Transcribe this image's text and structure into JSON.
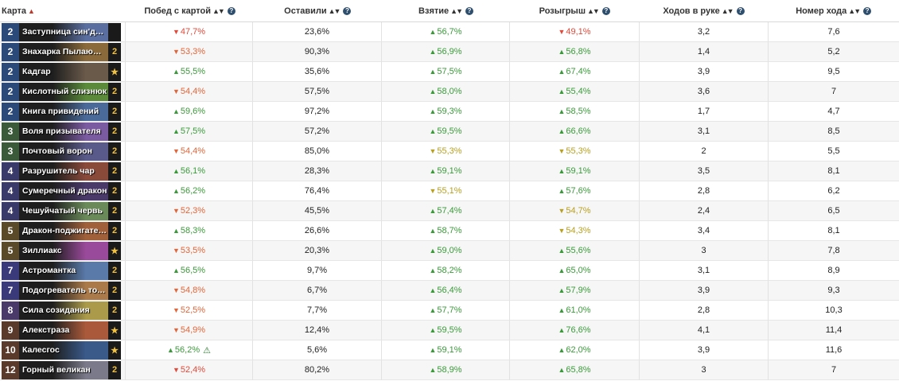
{
  "header": {
    "card": "Карта",
    "winrate": "Побед с картой",
    "kept": "Оставили",
    "drawn": "Взятие",
    "played": "Розыгрыш",
    "turns_held": "Ходов в руке",
    "turn_played": "Номер хода"
  },
  "colors": {
    "up": "#3a9a3a",
    "down": "#e0663a",
    "neutral": "#b8a020"
  },
  "rows": [
    {
      "cost": "2",
      "name": "Заступница син'дорай",
      "count": "",
      "legendary": false,
      "win": "47,7%",
      "win_dir": "down-strong",
      "kept": "23,6%",
      "drawn": "56,7%",
      "drawn_dir": "up",
      "played": "49,1%",
      "played_dir": "down-strong",
      "held": "3,2",
      "turn": "7,6",
      "art": "#5a6fa0"
    },
    {
      "cost": "2",
      "name": "Знахарка Пылающег…",
      "count": "2",
      "legendary": false,
      "win": "53,3%",
      "win_dir": "down",
      "kept": "90,3%",
      "drawn": "56,9%",
      "drawn_dir": "up",
      "played": "56,8%",
      "played_dir": "up",
      "held": "1,4",
      "turn": "5,2",
      "art": "#8a6a3a"
    },
    {
      "cost": "2",
      "name": "Кадгар",
      "count": "★",
      "legendary": true,
      "win": "55,5%",
      "win_dir": "up",
      "kept": "35,6%",
      "drawn": "57,5%",
      "drawn_dir": "up",
      "played": "67,4%",
      "played_dir": "up",
      "held": "3,9",
      "turn": "9,5",
      "art": "#6a5a4a"
    },
    {
      "cost": "2",
      "name": "Кислотный слизнюк",
      "count": "2",
      "legendary": false,
      "win": "54,4%",
      "win_dir": "down",
      "kept": "57,5%",
      "drawn": "58,0%",
      "drawn_dir": "up",
      "played": "55,4%",
      "played_dir": "up",
      "held": "3,6",
      "turn": "7",
      "art": "#5a8a3a"
    },
    {
      "cost": "2",
      "name": "Книга привидений",
      "count": "2",
      "legendary": false,
      "win": "59,6%",
      "win_dir": "up",
      "kept": "97,2%",
      "drawn": "59,3%",
      "drawn_dir": "up",
      "played": "58,5%",
      "played_dir": "up",
      "held": "1,7",
      "turn": "4,7",
      "art": "#4a6a9a"
    },
    {
      "cost": "3",
      "name": "Воля призывателя",
      "count": "2",
      "legendary": false,
      "win": "57,5%",
      "win_dir": "up",
      "kept": "57,2%",
      "drawn": "59,5%",
      "drawn_dir": "up",
      "played": "66,6%",
      "played_dir": "up",
      "held": "3,1",
      "turn": "8,5",
      "art": "#7a5aa0"
    },
    {
      "cost": "3",
      "name": "Почтовый ворон",
      "count": "2",
      "legendary": false,
      "win": "54,4%",
      "win_dir": "down",
      "kept": "85,0%",
      "drawn": "55,3%",
      "drawn_dir": "neutral",
      "played": "55,3%",
      "played_dir": "neutral",
      "held": "2",
      "turn": "5,5",
      "art": "#5a5a8a"
    },
    {
      "cost": "4",
      "name": "Разрушитель чар",
      "count": "2",
      "legendary": false,
      "win": "56,1%",
      "win_dir": "up",
      "kept": "28,3%",
      "drawn": "59,1%",
      "drawn_dir": "up",
      "played": "59,1%",
      "played_dir": "up",
      "held": "3,5",
      "turn": "8,1",
      "art": "#8a4a3a"
    },
    {
      "cost": "4",
      "name": "Сумеречный дракон",
      "count": "2",
      "legendary": false,
      "win": "56,2%",
      "win_dir": "up",
      "kept": "76,4%",
      "drawn": "55,1%",
      "drawn_dir": "neutral",
      "played": "57,6%",
      "played_dir": "up",
      "held": "2,8",
      "turn": "6,2",
      "art": "#4a3a6a"
    },
    {
      "cost": "4",
      "name": "Чешуйчатый червь",
      "count": "2",
      "legendary": false,
      "win": "52,3%",
      "win_dir": "down",
      "kept": "45,5%",
      "drawn": "57,4%",
      "drawn_dir": "up",
      "played": "54,7%",
      "played_dir": "neutral",
      "held": "2,4",
      "turn": "6,5",
      "art": "#6a8a5a"
    },
    {
      "cost": "5",
      "name": "Дракон-поджигатель",
      "count": "2",
      "legendary": false,
      "win": "58,3%",
      "win_dir": "up",
      "kept": "26,6%",
      "drawn": "58,7%",
      "drawn_dir": "up",
      "played": "54,3%",
      "played_dir": "neutral",
      "held": "3,4",
      "turn": "8,1",
      "art": "#a0603a"
    },
    {
      "cost": "5",
      "name": "Зиллиакс",
      "count": "★",
      "legendary": true,
      "win": "53,5%",
      "win_dir": "down",
      "kept": "20,3%",
      "drawn": "59,0%",
      "drawn_dir": "up",
      "played": "55,6%",
      "played_dir": "up",
      "held": "3",
      "turn": "7,8",
      "art": "#9a4a9a"
    },
    {
      "cost": "7",
      "name": "Астромантка",
      "count": "2",
      "legendary": false,
      "win": "56,5%",
      "win_dir": "up",
      "kept": "9,7%",
      "drawn": "58,2%",
      "drawn_dir": "up",
      "played": "65,0%",
      "played_dir": "up",
      "held": "3,1",
      "turn": "8,9",
      "art": "#5a7aaa"
    },
    {
      "cost": "7",
      "name": "Подогреватель толпы",
      "count": "2",
      "legendary": false,
      "win": "54,8%",
      "win_dir": "down",
      "kept": "6,7%",
      "drawn": "56,4%",
      "drawn_dir": "up",
      "played": "57,9%",
      "played_dir": "up",
      "held": "3,9",
      "turn": "9,3",
      "art": "#aa7a4a"
    },
    {
      "cost": "8",
      "name": "Сила созидания",
      "count": "2",
      "legendary": false,
      "win": "52,5%",
      "win_dir": "down",
      "kept": "7,7%",
      "drawn": "57,7%",
      "drawn_dir": "up",
      "played": "61,0%",
      "played_dir": "up",
      "held": "2,8",
      "turn": "10,3",
      "art": "#aa9a4a"
    },
    {
      "cost": "9",
      "name": "Алекстраза",
      "count": "★",
      "legendary": true,
      "win": "54,9%",
      "win_dir": "down",
      "kept": "12,4%",
      "drawn": "59,5%",
      "drawn_dir": "up",
      "played": "76,6%",
      "played_dir": "up",
      "held": "4,1",
      "turn": "11,4",
      "art": "#aa5a3a"
    },
    {
      "cost": "10",
      "name": "Калесгос",
      "count": "★",
      "legendary": true,
      "win": "56,2%",
      "win_dir": "up",
      "warn": true,
      "kept": "5,6%",
      "drawn": "59,1%",
      "drawn_dir": "up",
      "played": "62,0%",
      "played_dir": "up",
      "held": "3,9",
      "turn": "11,6",
      "art": "#3a5a8a"
    },
    {
      "cost": "12",
      "name": "Горный великан",
      "count": "2",
      "legendary": false,
      "win": "52,4%",
      "win_dir": "down-strong",
      "kept": "80,2%",
      "drawn": "58,9%",
      "drawn_dir": "up",
      "played": "65,8%",
      "played_dir": "up",
      "held": "3",
      "turn": "7",
      "art": "#7a7a8a"
    }
  ]
}
